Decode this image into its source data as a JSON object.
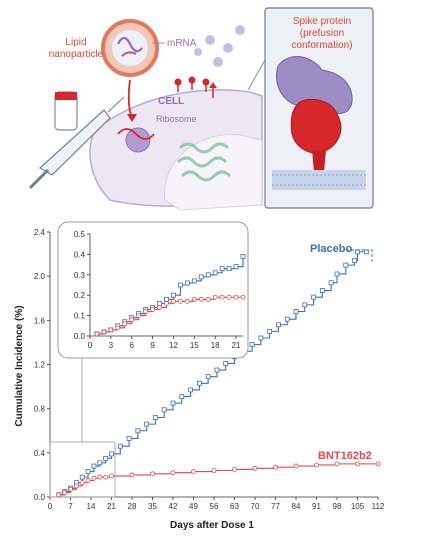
{
  "illustration": {
    "lipid_nanoparticle_label": [
      "Lipid",
      "nanoparticle"
    ],
    "mrna_label": "mRNA",
    "cell_label": "CELL",
    "ribosome_label": "Ribosome",
    "spike_title": [
      "Spike protein",
      "(prefusion",
      "conformation)"
    ],
    "colors": {
      "lipid": "#e8826a",
      "mrna": "#9b6bb0",
      "cell": "#e9e4f1",
      "spike_red": "#d7262c",
      "spike_purple": "#8e7ab5"
    }
  },
  "chart_data": [
    {
      "type": "line",
      "step": true,
      "xlabel": "Days after Dose 1",
      "ylabel": "Cumulative Incidence (%)",
      "xlim": [
        0,
        112
      ],
      "ylim": [
        0,
        2.4
      ],
      "xticks": [
        0,
        7,
        14,
        21,
        28,
        35,
        42,
        49,
        56,
        63,
        70,
        77,
        84,
        91,
        98,
        105,
        112
      ],
      "yticks": [
        "0.0",
        "0.4",
        "0.8",
        "1.2",
        "1.6",
        "2.0",
        "2.4"
      ],
      "series": [
        {
          "name": "Placebo",
          "color": "#3a6fb0",
          "x": [
            0,
            3,
            5,
            7,
            9,
            11,
            13,
            15,
            17,
            19,
            21,
            24,
            27,
            30,
            33,
            36,
            39,
            42,
            45,
            48,
            51,
            54,
            57,
            60,
            63,
            66,
            69,
            72,
            75,
            78,
            81,
            84,
            87,
            90,
            93,
            96,
            98,
            101,
            104,
            105,
            108
          ],
          "y": [
            0.0,
            0.02,
            0.05,
            0.08,
            0.13,
            0.18,
            0.23,
            0.28,
            0.31,
            0.35,
            0.39,
            0.46,
            0.53,
            0.6,
            0.66,
            0.72,
            0.79,
            0.85,
            0.91,
            0.97,
            1.03,
            1.09,
            1.15,
            1.21,
            1.27,
            1.32,
            1.38,
            1.44,
            1.5,
            1.56,
            1.61,
            1.68,
            1.74,
            1.81,
            1.87,
            1.94,
            2.02,
            2.1,
            2.14,
            2.22,
            2.22
          ]
        },
        {
          "name": "BNT162b2",
          "color": "#e04a4a",
          "x": [
            0,
            3,
            5,
            7,
            9,
            11,
            13,
            15,
            17,
            19,
            21,
            28,
            35,
            42,
            49,
            56,
            63,
            70,
            77,
            84,
            91,
            98,
            105,
            112
          ],
          "y": [
            0.0,
            0.02,
            0.04,
            0.07,
            0.1,
            0.13,
            0.15,
            0.17,
            0.18,
            0.18,
            0.19,
            0.2,
            0.21,
            0.22,
            0.23,
            0.24,
            0.25,
            0.26,
            0.27,
            0.28,
            0.29,
            0.3,
            0.3,
            0.3
          ]
        }
      ]
    },
    {
      "type": "line",
      "step": true,
      "inset": true,
      "xlim": [
        0,
        22
      ],
      "ylim": [
        0,
        0.5
      ],
      "xticks": [
        0,
        3,
        6,
        9,
        12,
        15,
        18,
        21
      ],
      "yticks": [
        "0.0",
        "0.1",
        "0.2",
        "0.3",
        "0.4",
        "0.5"
      ],
      "series": [
        {
          "name": "Placebo",
          "color": "#3a6fb0",
          "x": [
            0,
            1,
            2,
            3,
            4,
            5,
            6,
            7,
            8,
            9,
            10,
            11,
            12,
            13,
            14,
            15,
            16,
            17,
            18,
            19,
            20,
            21,
            22
          ],
          "y": [
            0.0,
            0.01,
            0.02,
            0.03,
            0.05,
            0.07,
            0.09,
            0.11,
            0.13,
            0.14,
            0.16,
            0.18,
            0.2,
            0.25,
            0.26,
            0.27,
            0.29,
            0.3,
            0.31,
            0.33,
            0.33,
            0.34,
            0.39
          ]
        },
        {
          "name": "BNT162b2",
          "color": "#e04a4a",
          "x": [
            0,
            1,
            2,
            3,
            4,
            5,
            6,
            7,
            8,
            9,
            10,
            11,
            12,
            13,
            14,
            15,
            16,
            17,
            18,
            19,
            20,
            21,
            22
          ],
          "y": [
            0.0,
            0.01,
            0.02,
            0.03,
            0.04,
            0.06,
            0.08,
            0.1,
            0.12,
            0.13,
            0.14,
            0.16,
            0.17,
            0.17,
            0.17,
            0.18,
            0.18,
            0.18,
            0.19,
            0.19,
            0.19,
            0.19,
            0.19
          ]
        }
      ]
    }
  ]
}
